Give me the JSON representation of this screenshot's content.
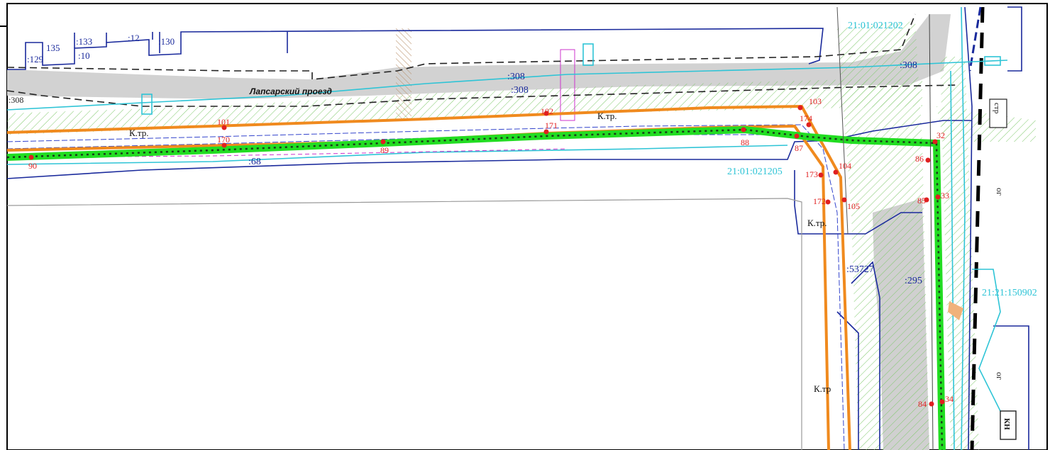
{
  "street": {
    "name": "Лапсарский проезд"
  },
  "districts": {
    "d1": "21:01:021202",
    "d2": "21:01:021205",
    "d3": "21:21:150902"
  },
  "parcels": {
    "p129": ":129",
    "p135": "135",
    "p133": ":133",
    "p10": ":10",
    "p12": ":12",
    "p130": ":130",
    "p308a": ":308",
    "p308b": ":308",
    "p308c": ":308",
    "p308d": ":308",
    "p68": ":68",
    "p53727": ":53727",
    "p295": ":295"
  },
  "objects": {
    "ktr1": "К.тр.",
    "ktr2": "К.тр.",
    "ktr3": "К.тр.",
    "ktr4": "К.тр",
    "str": "стр",
    "og1": "ог",
    "og2": "ог",
    "kn": "КН"
  },
  "points": [
    {
      "id": "p90",
      "label": "90"
    },
    {
      "id": "p101",
      "label": "101"
    },
    {
      "id": "p170",
      "label": "170"
    },
    {
      "id": "p89",
      "label": "89"
    },
    {
      "id": "p102",
      "label": "102"
    },
    {
      "id": "p171",
      "label": "171"
    },
    {
      "id": "p103",
      "label": "103"
    },
    {
      "id": "p174",
      "label": "174"
    },
    {
      "id": "p88",
      "label": "88"
    },
    {
      "id": "p87",
      "label": "87"
    },
    {
      "id": "p173",
      "label": "173"
    },
    {
      "id": "p104",
      "label": "104"
    },
    {
      "id": "p172",
      "label": "172"
    },
    {
      "id": "p105",
      "label": "105"
    },
    {
      "id": "p32",
      "label": "32"
    },
    {
      "id": "p86",
      "label": "86"
    },
    {
      "id": "p85",
      "label": "85"
    },
    {
      "id": "p33",
      "label": "33"
    },
    {
      "id": "p84",
      "label": "84"
    },
    {
      "id": "p34",
      "label": "34"
    }
  ],
  "colors": {
    "green_line": "#22dd22",
    "orange_line": "#f08a1e",
    "cyan": "#2ec4d6",
    "blue": "#1a2a9c",
    "red_point": "#e02020",
    "hatch_green": "#7ec86a",
    "road_gray": "#cfcfcf"
  }
}
